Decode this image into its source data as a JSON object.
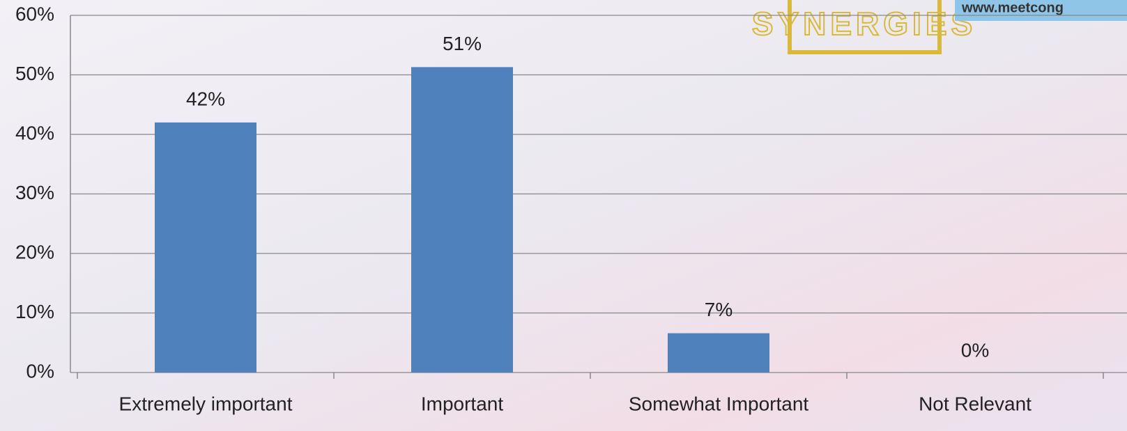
{
  "chart_data": {
    "type": "bar",
    "categories": [
      "Extremely important",
      "Important",
      "Somewhat Important",
      "Not Relevant"
    ],
    "values": [
      42,
      51.3,
      6.6,
      0
    ],
    "value_labels": [
      "42%",
      "51%",
      "7%",
      "0%"
    ],
    "color": "#4f81bd",
    "ylim": [
      0,
      60
    ],
    "yticks": [
      {
        "value": 0,
        "label": "0%"
      },
      {
        "value": 10,
        "label": "10%"
      },
      {
        "value": 20,
        "label": "20%"
      },
      {
        "value": 30,
        "label": "30%"
      },
      {
        "value": 40,
        "label": "40%"
      },
      {
        "value": 50,
        "label": "50%"
      },
      {
        "value": 60,
        "label": "60%"
      }
    ],
    "grid": true
  },
  "logo": {
    "text": "SYNERGIES",
    "url": "www.meetcong"
  }
}
